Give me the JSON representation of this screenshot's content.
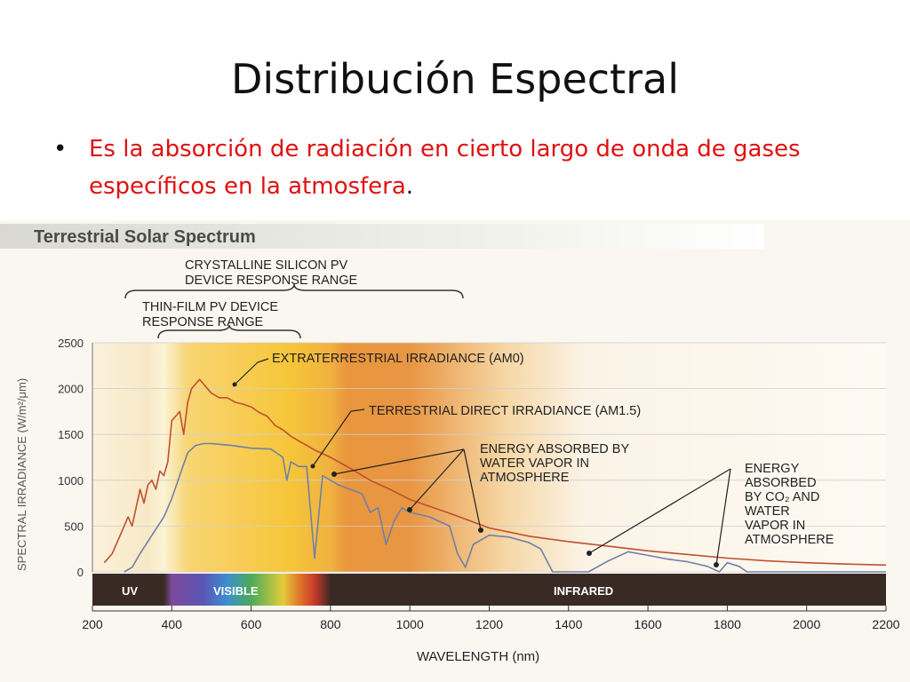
{
  "slide": {
    "title": "Distribución Espectral",
    "bullet_text": "Es la absorción de radiación en cierto largo de onda de gases específicos en la atmosfera",
    "bullet_period": "."
  },
  "figure": {
    "heading": "Terrestrial Solar Spectrum"
  },
  "chart_data": {
    "type": "line",
    "xlabel": "WAVELENGTH (nm)",
    "ylabel": "SPECTRAL IRRADIANCE (W/m²/μm)",
    "xlim": [
      200,
      2200
    ],
    "ylim": [
      0,
      2500
    ],
    "x_ticks": [
      200,
      400,
      600,
      800,
      1000,
      1200,
      1400,
      1600,
      1800,
      2000,
      2200
    ],
    "y_ticks": [
      0,
      500,
      1000,
      1500,
      2000,
      2500
    ],
    "series": [
      {
        "name": "EXTRATERRESTRIAL IRRADIANCE (AM0)",
        "color": "#c0502e",
        "x": [
          230,
          250,
          270,
          290,
          300,
          320,
          330,
          340,
          350,
          360,
          370,
          380,
          390,
          400,
          410,
          420,
          430,
          440,
          450,
          460,
          470,
          480,
          500,
          520,
          540,
          560,
          580,
          600,
          620,
          640,
          660,
          680,
          700,
          720,
          740,
          760,
          800,
          850,
          900,
          950,
          1000,
          1100,
          1200,
          1300,
          1400,
          1500,
          1600,
          1700,
          1800,
          1900,
          2000,
          2100,
          2200
        ],
        "y": [
          100,
          200,
          400,
          600,
          500,
          900,
          750,
          950,
          1000,
          900,
          1100,
          1050,
          1200,
          1650,
          1700,
          1750,
          1500,
          1850,
          2000,
          2050,
          2100,
          2050,
          1950,
          1900,
          1900,
          1850,
          1830,
          1800,
          1740,
          1700,
          1600,
          1550,
          1480,
          1430,
          1380,
          1330,
          1250,
          1130,
          1000,
          900,
          790,
          640,
          480,
          390,
          330,
          280,
          230,
          190,
          150,
          120,
          100,
          85,
          75
        ]
      },
      {
        "name": "TERRESTRIAL DIRECT IRRADIANCE (AM1.5)",
        "color": "#7080a8",
        "x": [
          280,
          300,
          320,
          350,
          380,
          400,
          420,
          440,
          460,
          480,
          500,
          550,
          600,
          650,
          680,
          690,
          700,
          720,
          740,
          760,
          780,
          800,
          820,
          850,
          880,
          900,
          920,
          940,
          960,
          980,
          1000,
          1050,
          1100,
          1120,
          1140,
          1160,
          1200,
          1250,
          1300,
          1330,
          1360,
          1380,
          1400,
          1450,
          1500,
          1550,
          1600,
          1650,
          1700,
          1750,
          1780,
          1800,
          1830,
          1850,
          1900,
          2000,
          2100,
          2200
        ],
        "y": [
          0,
          50,
          200,
          400,
          600,
          800,
          1050,
          1300,
          1380,
          1400,
          1400,
          1380,
          1350,
          1340,
          1250,
          1000,
          1200,
          1150,
          1150,
          150,
          1050,
          1000,
          950,
          900,
          850,
          650,
          700,
          300,
          550,
          700,
          650,
          600,
          500,
          200,
          50,
          300,
          400,
          380,
          320,
          250,
          0,
          0,
          0,
          0,
          120,
          220,
          180,
          140,
          110,
          60,
          0,
          100,
          60,
          0,
          0,
          0,
          0,
          0
        ]
      }
    ],
    "bands": [
      {
        "label": "UV",
        "x_range": [
          200,
          400
        ]
      },
      {
        "label": "VISIBLE",
        "x_range": [
          400,
          800
        ]
      },
      {
        "label": "INFRARED",
        "x_range": [
          800,
          2200
        ]
      }
    ],
    "ranges": [
      {
        "label": "CRYSTALLINE SILICON PV DEVICE RESPONSE RANGE",
        "x_range": [
          280,
          1130
        ]
      },
      {
        "label": "THIN-FILM PV DEVICE RESPONSE RANGE",
        "x_range": [
          370,
          850
        ]
      }
    ],
    "annotations": [
      {
        "text": "EXTRATERRESTRIAL IRRADIANCE (AM0)"
      },
      {
        "text": "TERRESTRIAL DIRECT IRRADIANCE (AM1.5)"
      },
      {
        "text": "ENERGY ABSORBED BY WATER VAPOR IN ATMOSPHERE",
        "points": [
          [
            920,
            1100
          ],
          [
            1000,
            700
          ],
          [
            1180,
            480
          ]
        ]
      },
      {
        "text": "ENERGY ABSORBED BY CO₂ AND WATER VAPOR IN ATMOSPHERE",
        "points": [
          [
            1460,
            220
          ],
          [
            1770,
            80
          ]
        ]
      }
    ]
  }
}
